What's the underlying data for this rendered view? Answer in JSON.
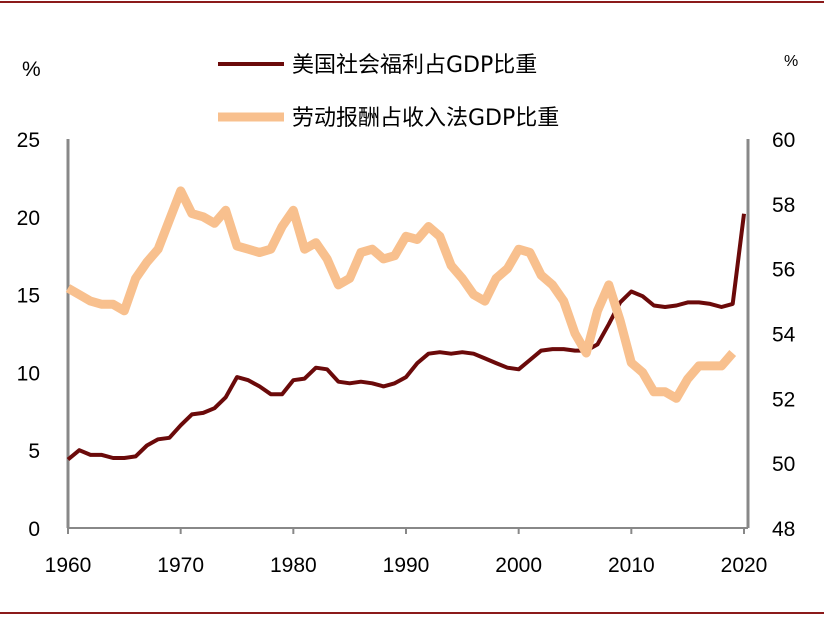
{
  "chart_data": {
    "type": "line",
    "left_axis": {
      "unit": "%",
      "ylim": [
        0,
        25
      ],
      "ticks": [
        "0",
        "5",
        "10",
        "15",
        "20",
        "25"
      ]
    },
    "right_axis": {
      "unit": "%",
      "ylim": [
        48,
        60
      ],
      "ticks": [
        "48",
        "50",
        "52",
        "54",
        "56",
        "58",
        "60"
      ]
    },
    "x_axis": {
      "xlim": [
        1960,
        2020
      ],
      "ticks": [
        "1960",
        "1970",
        "1980",
        "1990",
        "2000",
        "2010",
        "2020"
      ]
    },
    "legend_position": "top",
    "grid": false,
    "series": [
      {
        "name": "美国社会福利占GDP比重",
        "axis": "left",
        "color": "#6b0a0a",
        "x": [
          1960,
          1961,
          1962,
          1963,
          1964,
          1965,
          1966,
          1967,
          1968,
          1969,
          1970,
          1971,
          1972,
          1973,
          1974,
          1975,
          1976,
          1977,
          1978,
          1979,
          1980,
          1981,
          1982,
          1983,
          1984,
          1985,
          1986,
          1987,
          1988,
          1989,
          1990,
          1991,
          1992,
          1993,
          1994,
          1995,
          1996,
          1997,
          1998,
          1999,
          2000,
          2001,
          2002,
          2003,
          2004,
          2005,
          2006,
          2007,
          2008,
          2009,
          2010,
          2011,
          2012,
          2013,
          2014,
          2015,
          2016,
          2017,
          2018,
          2019,
          2020
        ],
        "values": [
          4.4,
          5.0,
          4.7,
          4.7,
          4.5,
          4.5,
          4.6,
          5.3,
          5.7,
          5.8,
          6.6,
          7.3,
          7.4,
          7.7,
          8.4,
          9.7,
          9.5,
          9.1,
          8.6,
          8.6,
          9.5,
          9.6,
          10.3,
          10.2,
          9.4,
          9.3,
          9.4,
          9.3,
          9.1,
          9.3,
          9.7,
          10.6,
          11.2,
          11.3,
          11.2,
          11.3,
          11.2,
          10.9,
          10.6,
          10.3,
          10.2,
          10.8,
          11.4,
          11.5,
          11.5,
          11.4,
          11.4,
          11.8,
          13.1,
          14.5,
          15.2,
          14.9,
          14.3,
          14.2,
          14.3,
          14.5,
          14.5,
          14.4,
          14.2,
          14.4,
          20.2
        ]
      },
      {
        "name": "劳动报酬占收入法GDP比重",
        "axis": "right",
        "color": "#f8c08e",
        "x": [
          1960,
          1961,
          1962,
          1963,
          1964,
          1965,
          1966,
          1967,
          1968,
          1969,
          1970,
          1971,
          1972,
          1973,
          1974,
          1975,
          1976,
          1977,
          1978,
          1979,
          1980,
          1981,
          1982,
          1983,
          1984,
          1985,
          1986,
          1987,
          1988,
          1989,
          1990,
          1991,
          1992,
          1993,
          1994,
          1995,
          1996,
          1997,
          1998,
          1999,
          2000,
          2001,
          2002,
          2003,
          2004,
          2005,
          2006,
          2007,
          2008,
          2009,
          2010,
          2011,
          2012,
          2013,
          2014,
          2015,
          2016,
          2017,
          2018,
          2019
        ],
        "values": [
          55.4,
          55.2,
          55.0,
          54.9,
          54.9,
          54.7,
          55.7,
          56.2,
          56.6,
          57.5,
          58.4,
          57.7,
          57.6,
          57.4,
          57.8,
          56.7,
          56.6,
          56.5,
          56.6,
          57.3,
          57.8,
          56.6,
          56.8,
          56.3,
          55.5,
          55.7,
          56.5,
          56.6,
          56.3,
          56.4,
          57.0,
          56.9,
          57.3,
          57.0,
          56.1,
          55.7,
          55.2,
          55.0,
          55.7,
          56.0,
          56.6,
          56.5,
          55.8,
          55.5,
          55.0,
          54.0,
          53.4,
          54.7,
          55.5,
          54.4,
          53.1,
          52.8,
          52.2,
          52.2,
          52.0,
          52.6,
          53.0,
          53.0,
          53.0,
          53.4
        ]
      }
    ]
  }
}
